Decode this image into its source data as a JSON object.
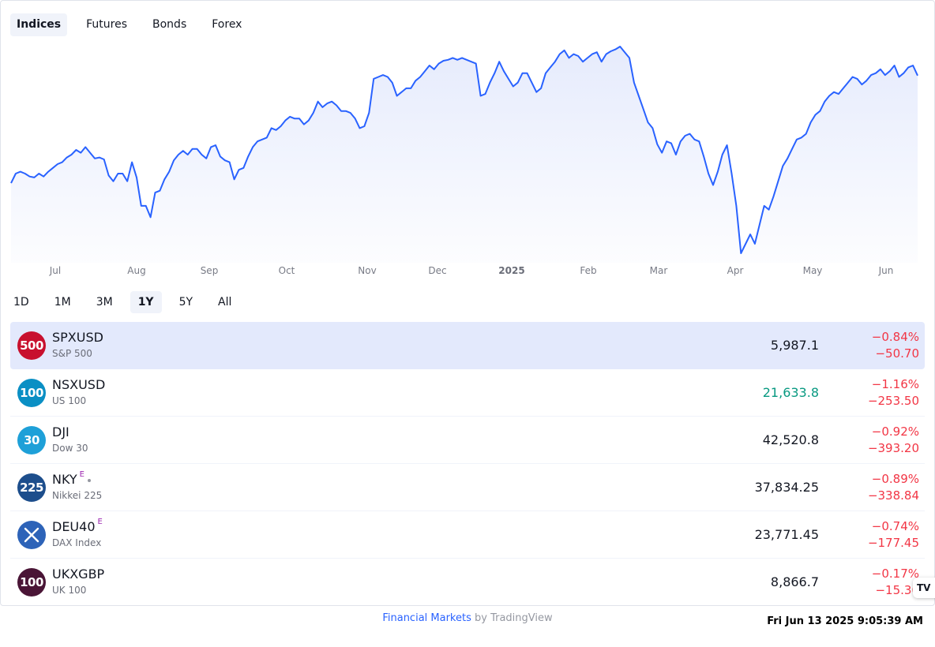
{
  "tabs": [
    {
      "label": "Indices",
      "active": true
    },
    {
      "label": "Futures",
      "active": false
    },
    {
      "label": "Bonds",
      "active": false
    },
    {
      "label": "Forex",
      "active": false
    }
  ],
  "chart_data": {
    "type": "area",
    "x_labels": [
      "Jul",
      "Aug",
      "Sep",
      "Oct",
      "Nov",
      "Dec",
      "2025",
      "Feb",
      "Mar",
      "Apr",
      "May",
      "Jun"
    ],
    "line_color": "#2962ff",
    "fill_color": "#e3e9fc",
    "grid": false,
    "values": [
      5420,
      5470,
      5480,
      5470,
      5455,
      5450,
      5470,
      5455,
      5480,
      5500,
      5520,
      5530,
      5555,
      5570,
      5595,
      5580,
      5610,
      5580,
      5550,
      5555,
      5545,
      5460,
      5430,
      5470,
      5470,
      5430,
      5530,
      5450,
      5300,
      5300,
      5240,
      5370,
      5380,
      5440,
      5480,
      5540,
      5570,
      5590,
      5570,
      5600,
      5600,
      5570,
      5550,
      5610,
      5620,
      5560,
      5540,
      5530,
      5440,
      5490,
      5500,
      5560,
      5610,
      5640,
      5650,
      5660,
      5710,
      5700,
      5720,
      5750,
      5770,
      5760,
      5760,
      5730,
      5750,
      5790,
      5850,
      5820,
      5840,
      5850,
      5830,
      5800,
      5800,
      5790,
      5760,
      5710,
      5720,
      5790,
      5970,
      5980,
      5990,
      5980,
      5950,
      5880,
      5900,
      5920,
      5920,
      5960,
      5980,
      6010,
      6040,
      6020,
      6050,
      6065,
      6070,
      6080,
      6070,
      6080,
      6070,
      6060,
      6050,
      5880,
      5890,
      5950,
      6000,
      6060,
      6010,
      5970,
      5930,
      5950,
      6000,
      6000,
      5950,
      5900,
      5920,
      6000,
      6030,
      6060,
      6100,
      6120,
      6080,
      6100,
      6090,
      6060,
      6080,
      6100,
      6110,
      6060,
      6100,
      6115,
      6125,
      6140,
      6110,
      6080,
      5950,
      5880,
      5810,
      5740,
      5710,
      5625,
      5580,
      5640,
      5630,
      5570,
      5640,
      5670,
      5680,
      5650,
      5640,
      5560,
      5470,
      5410,
      5480,
      5570,
      5620,
      5470,
      5300,
      5050,
      5100,
      5150,
      5100,
      5200,
      5300,
      5280,
      5350,
      5430,
      5510,
      5550,
      5600,
      5650,
      5660,
      5680,
      5740,
      5780,
      5800,
      5850,
      5880,
      5900,
      5890,
      5920,
      5950,
      5980,
      5970,
      5940,
      5960,
      5990,
      6000,
      6020,
      5990,
      6010,
      6040,
      5980,
      6000,
      6030,
      6040,
      5987
    ]
  },
  "ranges": [
    {
      "label": "1D",
      "active": false
    },
    {
      "label": "1M",
      "active": false
    },
    {
      "label": "3M",
      "active": false
    },
    {
      "label": "1Y",
      "active": true
    },
    {
      "label": "5Y",
      "active": false
    },
    {
      "label": "All",
      "active": false
    }
  ],
  "rows": [
    {
      "logo": "500",
      "logo_color": "#c8102e",
      "symbol": "SPXUSD",
      "badge": "",
      "desc": "S&P 500",
      "price": "5,987.1",
      "price_color": "neutral",
      "chg_pct": "−0.84%",
      "chg_abs": "−50.70",
      "selected": true
    },
    {
      "logo": "100",
      "logo_color": "#0a8fc4",
      "symbol": "NSXUSD",
      "badge": "",
      "desc": "US 100",
      "price": "21,633.8",
      "price_color": "up",
      "chg_pct": "−1.16%",
      "chg_abs": "−253.50",
      "selected": false
    },
    {
      "logo": "30",
      "logo_color": "#1ea0d8",
      "symbol": "DJI",
      "badge": "",
      "desc": "Dow 30",
      "price": "42,520.8",
      "price_color": "neutral",
      "chg_pct": "−0.92%",
      "chg_abs": "−393.20",
      "selected": false
    },
    {
      "logo": "225",
      "logo_color": "#1d4e8c",
      "symbol": "NKY",
      "badge": "E",
      "desc": "Nikkei 225",
      "price": "37,834.25",
      "price_color": "neutral",
      "chg_pct": "−0.89%",
      "chg_abs": "−338.84",
      "selected": false
    },
    {
      "logo": "✕",
      "logo_color": "#2d63b8",
      "symbol": "DEU40",
      "badge": "E",
      "desc": "DAX Index",
      "price": "23,771.45",
      "price_color": "neutral",
      "chg_pct": "−0.74%",
      "chg_abs": "−177.45",
      "selected": false
    },
    {
      "logo": "100",
      "logo_color": "#4a1536",
      "symbol": "UKXGBP",
      "badge": "",
      "desc": "UK 100",
      "price": "8,866.7",
      "price_color": "neutral",
      "chg_pct": "−0.17%",
      "chg_abs": "−15.30",
      "selected": false
    }
  ],
  "footer": {
    "link": "Financial Markets",
    "by": " by TradingView"
  },
  "clock": "Fri Jun 13 2025 9:05:39 AM",
  "tv_badge": "TV"
}
